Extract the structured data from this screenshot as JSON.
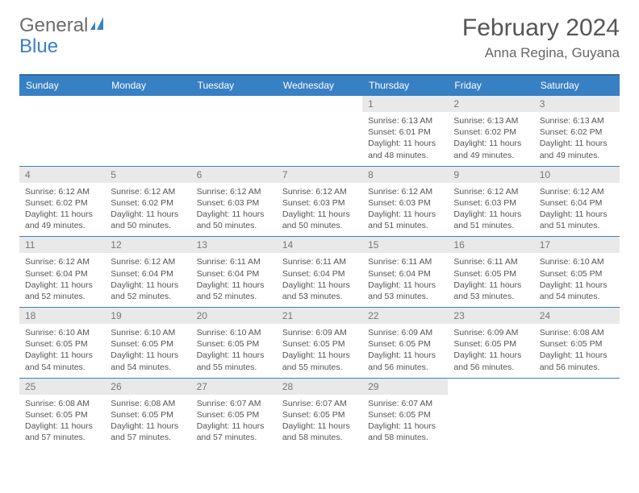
{
  "logo": {
    "text1": "General",
    "text2": "Blue"
  },
  "title": "February 2024",
  "subtitle": "Anna Regina, Guyana",
  "colors": {
    "header_bg": "#3880c4",
    "header_text": "#ffffff",
    "daynum_bg": "#e9e9e9",
    "daynum_text": "#777777",
    "body_text": "#555555",
    "rule": "#3880c4"
  },
  "fonts": {
    "title": 30,
    "subtitle": 17,
    "dayheader": 12,
    "daynum": 12,
    "body": 10.5
  },
  "days": [
    "Sunday",
    "Monday",
    "Tuesday",
    "Wednesday",
    "Thursday",
    "Friday",
    "Saturday"
  ],
  "cells": [
    [
      null,
      null,
      null,
      null,
      {
        "n": "1",
        "sr": "6:13 AM",
        "ss": "6:01 PM",
        "dl": "11 hours and 48 minutes."
      },
      {
        "n": "2",
        "sr": "6:13 AM",
        "ss": "6:02 PM",
        "dl": "11 hours and 49 minutes."
      },
      {
        "n": "3",
        "sr": "6:13 AM",
        "ss": "6:02 PM",
        "dl": "11 hours and 49 minutes."
      }
    ],
    [
      {
        "n": "4",
        "sr": "6:12 AM",
        "ss": "6:02 PM",
        "dl": "11 hours and 49 minutes."
      },
      {
        "n": "5",
        "sr": "6:12 AM",
        "ss": "6:02 PM",
        "dl": "11 hours and 50 minutes."
      },
      {
        "n": "6",
        "sr": "6:12 AM",
        "ss": "6:03 PM",
        "dl": "11 hours and 50 minutes."
      },
      {
        "n": "7",
        "sr": "6:12 AM",
        "ss": "6:03 PM",
        "dl": "11 hours and 50 minutes."
      },
      {
        "n": "8",
        "sr": "6:12 AM",
        "ss": "6:03 PM",
        "dl": "11 hours and 51 minutes."
      },
      {
        "n": "9",
        "sr": "6:12 AM",
        "ss": "6:03 PM",
        "dl": "11 hours and 51 minutes."
      },
      {
        "n": "10",
        "sr": "6:12 AM",
        "ss": "6:04 PM",
        "dl": "11 hours and 51 minutes."
      }
    ],
    [
      {
        "n": "11",
        "sr": "6:12 AM",
        "ss": "6:04 PM",
        "dl": "11 hours and 52 minutes."
      },
      {
        "n": "12",
        "sr": "6:12 AM",
        "ss": "6:04 PM",
        "dl": "11 hours and 52 minutes."
      },
      {
        "n": "13",
        "sr": "6:11 AM",
        "ss": "6:04 PM",
        "dl": "11 hours and 52 minutes."
      },
      {
        "n": "14",
        "sr": "6:11 AM",
        "ss": "6:04 PM",
        "dl": "11 hours and 53 minutes."
      },
      {
        "n": "15",
        "sr": "6:11 AM",
        "ss": "6:04 PM",
        "dl": "11 hours and 53 minutes."
      },
      {
        "n": "16",
        "sr": "6:11 AM",
        "ss": "6:05 PM",
        "dl": "11 hours and 53 minutes."
      },
      {
        "n": "17",
        "sr": "6:10 AM",
        "ss": "6:05 PM",
        "dl": "11 hours and 54 minutes."
      }
    ],
    [
      {
        "n": "18",
        "sr": "6:10 AM",
        "ss": "6:05 PM",
        "dl": "11 hours and 54 minutes."
      },
      {
        "n": "19",
        "sr": "6:10 AM",
        "ss": "6:05 PM",
        "dl": "11 hours and 54 minutes."
      },
      {
        "n": "20",
        "sr": "6:10 AM",
        "ss": "6:05 PM",
        "dl": "11 hours and 55 minutes."
      },
      {
        "n": "21",
        "sr": "6:09 AM",
        "ss": "6:05 PM",
        "dl": "11 hours and 55 minutes."
      },
      {
        "n": "22",
        "sr": "6:09 AM",
        "ss": "6:05 PM",
        "dl": "11 hours and 56 minutes."
      },
      {
        "n": "23",
        "sr": "6:09 AM",
        "ss": "6:05 PM",
        "dl": "11 hours and 56 minutes."
      },
      {
        "n": "24",
        "sr": "6:08 AM",
        "ss": "6:05 PM",
        "dl": "11 hours and 56 minutes."
      }
    ],
    [
      {
        "n": "25",
        "sr": "6:08 AM",
        "ss": "6:05 PM",
        "dl": "11 hours and 57 minutes."
      },
      {
        "n": "26",
        "sr": "6:08 AM",
        "ss": "6:05 PM",
        "dl": "11 hours and 57 minutes."
      },
      {
        "n": "27",
        "sr": "6:07 AM",
        "ss": "6:05 PM",
        "dl": "11 hours and 57 minutes."
      },
      {
        "n": "28",
        "sr": "6:07 AM",
        "ss": "6:05 PM",
        "dl": "11 hours and 58 minutes."
      },
      {
        "n": "29",
        "sr": "6:07 AM",
        "ss": "6:05 PM",
        "dl": "11 hours and 58 minutes."
      },
      null,
      null
    ]
  ],
  "labels": {
    "sunrise": "Sunrise:",
    "sunset": "Sunset:",
    "daylight": "Daylight:"
  }
}
